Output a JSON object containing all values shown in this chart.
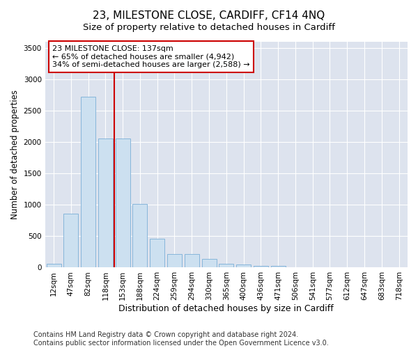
{
  "title": "23, MILESTONE CLOSE, CARDIFF, CF14 4NQ",
  "subtitle": "Size of property relative to detached houses in Cardiff",
  "xlabel": "Distribution of detached houses by size in Cardiff",
  "ylabel": "Number of detached properties",
  "footer_line1": "Contains HM Land Registry data © Crown copyright and database right 2024.",
  "footer_line2": "Contains public sector information licensed under the Open Government Licence v3.0.",
  "bar_labels": [
    "12sqm",
    "47sqm",
    "82sqm",
    "118sqm",
    "153sqm",
    "188sqm",
    "224sqm",
    "259sqm",
    "294sqm",
    "330sqm",
    "365sqm",
    "400sqm",
    "436sqm",
    "471sqm",
    "506sqm",
    "541sqm",
    "577sqm",
    "612sqm",
    "647sqm",
    "683sqm",
    "718sqm"
  ],
  "bar_values": [
    60,
    860,
    2720,
    2060,
    2055,
    1010,
    455,
    220,
    215,
    135,
    65,
    55,
    30,
    25,
    10,
    0,
    5,
    0,
    0,
    0,
    0
  ],
  "bar_color": "#cce0f0",
  "bar_edgecolor": "#7aaed6",
  "vline_x_idx": 3,
  "vline_color": "#cc0000",
  "annotation_title": "23 MILESTONE CLOSE: 137sqm",
  "annotation_line1": "← 65% of detached houses are smaller (4,942)",
  "annotation_line2": "34% of semi-detached houses are larger (2,588) →",
  "annotation_box_edgecolor": "#cc0000",
  "ylim": [
    0,
    3600
  ],
  "yticks": [
    0,
    500,
    1000,
    1500,
    2000,
    2500,
    3000,
    3500
  ],
  "background_color": "#dde3ee",
  "grid_color": "#ffffff",
  "title_fontsize": 11,
  "subtitle_fontsize": 9.5,
  "xlabel_fontsize": 9,
  "ylabel_fontsize": 8.5,
  "tick_fontsize": 7.5,
  "annotation_fontsize": 8,
  "footer_fontsize": 7
}
